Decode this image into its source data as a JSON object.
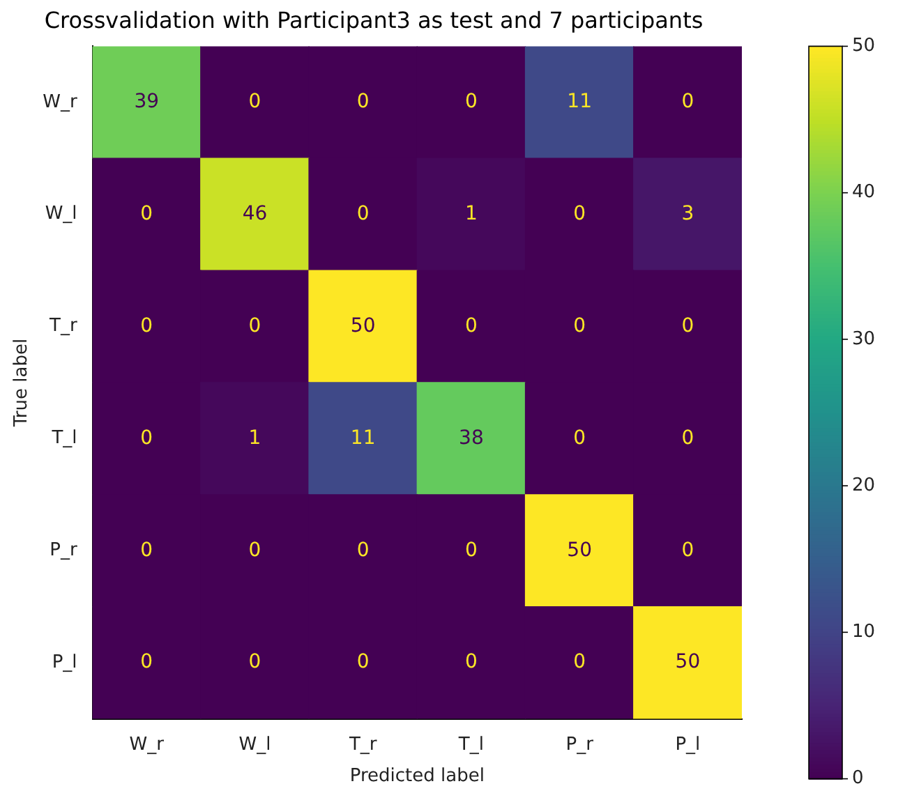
{
  "chart_data": {
    "type": "heatmap",
    "title": "Crossvalidation with Participant3 as test and 7 participants",
    "xlabel": "Predicted label",
    "ylabel": "True label",
    "categories": [
      "W_r",
      "W_l",
      "T_r",
      "T_l",
      "P_r",
      "P_l"
    ],
    "y_categories": [
      "W_r",
      "W_l",
      "T_r",
      "T_l",
      "P_r",
      "P_l"
    ],
    "cells": [
      [
        39,
        0,
        0,
        0,
        11,
        0
      ],
      [
        0,
        46,
        0,
        1,
        0,
        3
      ],
      [
        0,
        0,
        50,
        0,
        0,
        0
      ],
      [
        0,
        1,
        11,
        38,
        0,
        0
      ],
      [
        0,
        0,
        0,
        0,
        50,
        0
      ],
      [
        0,
        0,
        0,
        0,
        0,
        50
      ]
    ],
    "clim": [
      0,
      50
    ],
    "cticks": [
      0,
      10,
      20,
      30,
      40,
      50
    ],
    "data_labels": true
  }
}
